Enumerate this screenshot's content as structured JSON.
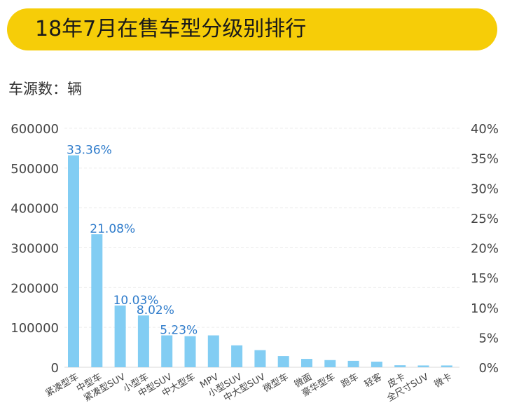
{
  "header": {
    "title": "18年7月在售车型分级别排行",
    "unit_label": "车源数：辆"
  },
  "colors": {
    "title_bar": "#f6cd08",
    "bar": "#82cdf3",
    "label": "#2f7ccb",
    "axis_text": "#444444",
    "grid": "#ececec"
  },
  "chart_data": {
    "type": "bar",
    "title": "18年7月在售车型分级别排行",
    "ylabel": "车源数：辆",
    "categories": [
      "紧凑型车",
      "中型车",
      "紧凑型SUV",
      "小型车",
      "中型SUV",
      "中大型车",
      "MPV",
      "小型SUV",
      "中大型SUV",
      "微型车",
      "微面",
      "豪华型车",
      "跑车",
      "轻客",
      "皮卡",
      "全尺寸SUV",
      "微卡"
    ],
    "series": [
      {
        "values": [
          532000,
          334000,
          155000,
          130000,
          80000,
          78000,
          80000,
          55000,
          43000,
          28000,
          21000,
          18000,
          16000,
          14000,
          5000,
          4500,
          4500
        ]
      }
    ],
    "data_labels": [
      "33.36%",
      "21.08%",
      "10.03%",
      "8.02%",
      "5.23%"
    ],
    "ylim": [
      0,
      600000
    ],
    "yticks": [
      "0",
      "100000",
      "200000",
      "300000",
      "400000",
      "500000",
      "600000"
    ],
    "y2lim": [
      0,
      40
    ],
    "y2ticks": [
      "0%",
      "5%",
      "10%",
      "15%",
      "20%",
      "25%",
      "30%",
      "35%",
      "40%"
    ],
    "grid": true,
    "legend": "none"
  }
}
